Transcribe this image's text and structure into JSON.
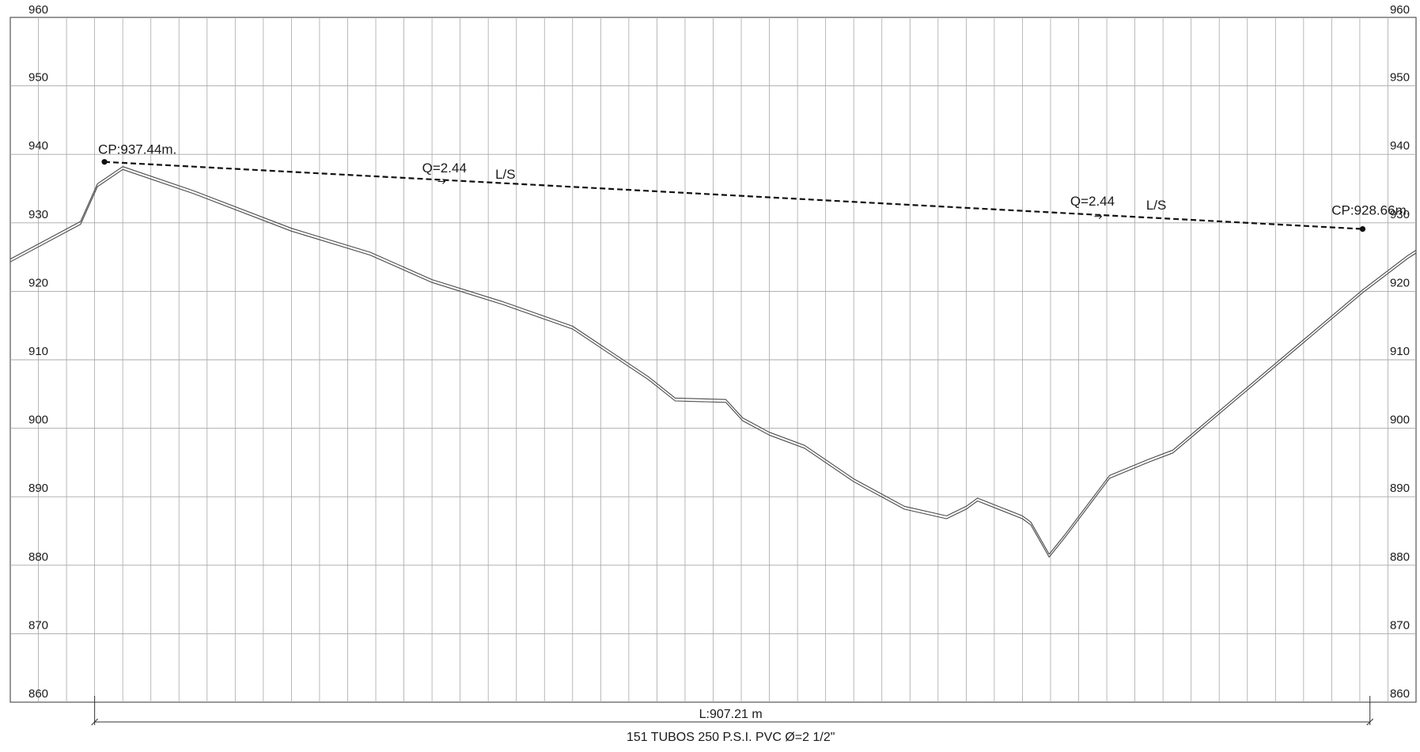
{
  "chart_data": {
    "type": "line",
    "title": "",
    "xlabel": "",
    "ylabel": "",
    "ylim": [
      860,
      960
    ],
    "y_ticks": [
      "960",
      "950",
      "940",
      "930",
      "920",
      "910",
      "900",
      "890",
      "880",
      "870",
      "860"
    ],
    "grid": true,
    "x_range": [
      0,
      1000
    ],
    "x_span": [
      60,
      967.21
    ],
    "terrain": {
      "x": [
        0,
        50,
        62,
        80,
        130,
        200,
        256,
        300,
        350,
        400,
        454,
        473,
        509,
        521,
        540,
        565,
        600,
        636,
        666,
        680,
        688,
        720,
        726,
        739,
        750,
        782,
        809,
        827,
        962,
        994,
        1013
      ],
      "y": [
        924.5,
        930,
        935.5,
        938,
        934.5,
        929,
        925.5,
        921.5,
        918.3,
        914.7,
        907.3,
        904.2,
        904,
        901.3,
        899.2,
        897.3,
        892.4,
        888.4,
        887,
        888.4,
        889.6,
        887,
        886.1,
        881.4,
        884.2,
        892.9,
        895.2,
        896.6,
        920,
        925,
        925.8
      ]
    },
    "hgl": {
      "x": [
        67,
        962
      ],
      "y": [
        938.9,
        929.1
      ]
    },
    "annotations": {
      "cp_start": "CP:937.44m.",
      "cp_end": "CP:928.66m.",
      "q1": "Q=2.44",
      "q1_unit": "L/S",
      "q2": "Q=2.44",
      "q2_unit": "L/S",
      "length": "L:907.21 m",
      "pipe": "151 TUBOS 250 P.S.I. PVC Ø=2 1/2\""
    },
    "colors": {
      "grid": "#a8a8a8",
      "terrain": "#4a4a4a",
      "hgl": "#111111",
      "frame": "#555555"
    }
  }
}
